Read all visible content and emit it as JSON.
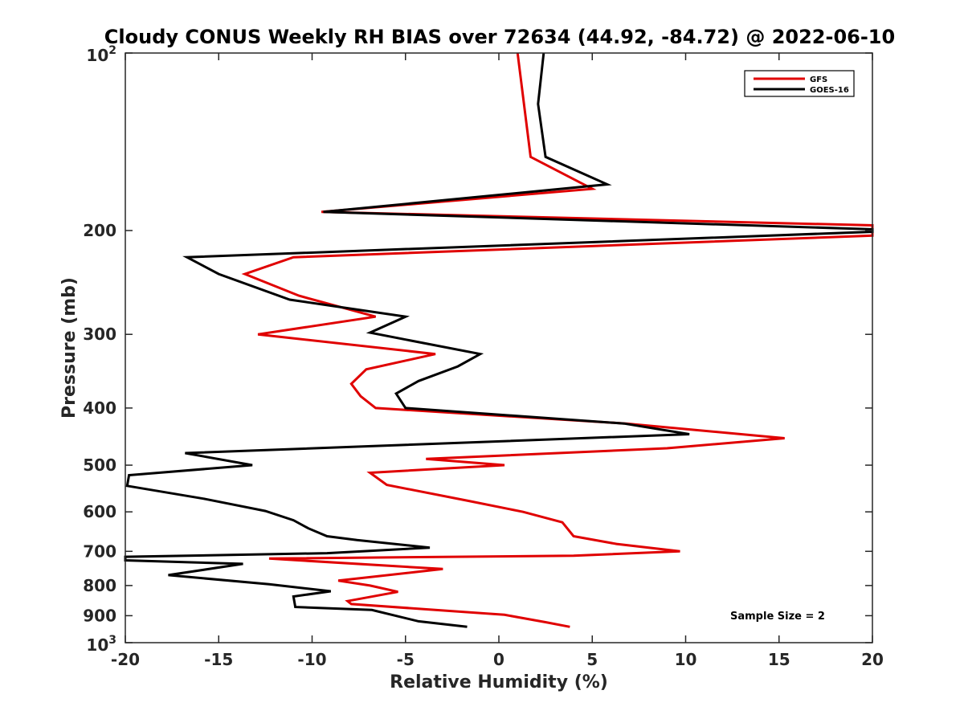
{
  "chart_data": {
    "type": "line",
    "title": "Cloudy CONUS Weekly RH BIAS over 72634 (44.92, -84.72) @ 2022-06-10",
    "xlabel": "Relative Humidity (%)",
    "ylabel": "Pressure (mb)",
    "xlim": [
      -20,
      20
    ],
    "ylim": [
      100,
      1000
    ],
    "y_scale": "log",
    "y_reversed": true,
    "grid": false,
    "legend_position": "top-right",
    "x_ticks": [
      {
        "value": -20,
        "label": "-20"
      },
      {
        "value": -15,
        "label": "-15"
      },
      {
        "value": -10,
        "label": "-10"
      },
      {
        "value": -5,
        "label": "-5"
      },
      {
        "value": 0,
        "label": "0"
      },
      {
        "value": 5,
        "label": "5"
      },
      {
        "value": 10,
        "label": "10"
      },
      {
        "value": 15,
        "label": "15"
      },
      {
        "value": 20,
        "label": "20"
      }
    ],
    "y_ticks": [
      {
        "value": 100,
        "label": "10",
        "sup": "2"
      },
      {
        "value": 200,
        "label": "200",
        "sup": ""
      },
      {
        "value": 300,
        "label": "300",
        "sup": ""
      },
      {
        "value": 400,
        "label": "400",
        "sup": ""
      },
      {
        "value": 500,
        "label": "500",
        "sup": ""
      },
      {
        "value": 600,
        "label": "600",
        "sup": ""
      },
      {
        "value": 700,
        "label": "700",
        "sup": ""
      },
      {
        "value": 800,
        "label": "800",
        "sup": ""
      },
      {
        "value": 900,
        "label": "900",
        "sup": ""
      },
      {
        "value": 1000,
        "label": "10",
        "sup": "3"
      }
    ],
    "series": [
      {
        "name": "GFS",
        "color": "#e00000",
        "points": [
          {
            "x": 1.0,
            "p": 100
          },
          {
            "x": 1.7,
            "p": 150
          },
          {
            "x": 5.0,
            "p": 170
          },
          {
            "x": -9.5,
            "p": 186
          },
          {
            "x": 20.0,
            "p": 196
          },
          {
            "x": 20.0,
            "p": 204
          },
          {
            "x": -11.0,
            "p": 222
          },
          {
            "x": -13.6,
            "p": 237
          },
          {
            "x": -10.7,
            "p": 258
          },
          {
            "x": -6.6,
            "p": 280
          },
          {
            "x": -12.9,
            "p": 300
          },
          {
            "x": -3.4,
            "p": 324
          },
          {
            "x": -7.1,
            "p": 344
          },
          {
            "x": -7.9,
            "p": 364
          },
          {
            "x": -7.4,
            "p": 382
          },
          {
            "x": -6.6,
            "p": 400
          },
          {
            "x": 6.8,
            "p": 425
          },
          {
            "x": 15.3,
            "p": 450
          },
          {
            "x": 9.0,
            "p": 468
          },
          {
            "x": -3.9,
            "p": 488
          },
          {
            "x": 0.3,
            "p": 500
          },
          {
            "x": -6.9,
            "p": 515
          },
          {
            "x": -6.0,
            "p": 540
          },
          {
            "x": -1.6,
            "p": 575
          },
          {
            "x": 1.3,
            "p": 600
          },
          {
            "x": 3.4,
            "p": 625
          },
          {
            "x": 4.0,
            "p": 660
          },
          {
            "x": 6.3,
            "p": 680
          },
          {
            "x": 9.7,
            "p": 700
          },
          {
            "x": 4.0,
            "p": 712
          },
          {
            "x": -12.3,
            "p": 720
          },
          {
            "x": -3.0,
            "p": 750
          },
          {
            "x": -8.6,
            "p": 785
          },
          {
            "x": -6.9,
            "p": 800
          },
          {
            "x": -5.4,
            "p": 820
          },
          {
            "x": -8.1,
            "p": 850
          },
          {
            "x": -7.9,
            "p": 860
          },
          {
            "x": 0.3,
            "p": 897
          },
          {
            "x": 2.5,
            "p": 923
          },
          {
            "x": 3.8,
            "p": 940
          }
        ]
      },
      {
        "name": "GOES-16",
        "color": "#000000",
        "points": [
          {
            "x": 2.4,
            "p": 100
          },
          {
            "x": 2.1,
            "p": 122
          },
          {
            "x": 2.5,
            "p": 150
          },
          {
            "x": 5.8,
            "p": 167
          },
          {
            "x": -9.4,
            "p": 186
          },
          {
            "x": 20.0,
            "p": 199
          },
          {
            "x": 20.0,
            "p": 201
          },
          {
            "x": -16.7,
            "p": 222
          },
          {
            "x": -15.0,
            "p": 237
          },
          {
            "x": -11.2,
            "p": 262
          },
          {
            "x": -5.0,
            "p": 280
          },
          {
            "x": -6.9,
            "p": 298
          },
          {
            "x": -1.0,
            "p": 324
          },
          {
            "x": -2.2,
            "p": 340
          },
          {
            "x": -4.3,
            "p": 360
          },
          {
            "x": -5.5,
            "p": 378
          },
          {
            "x": -5.0,
            "p": 400
          },
          {
            "x": 6.7,
            "p": 425
          },
          {
            "x": 10.2,
            "p": 443
          },
          {
            "x": -16.8,
            "p": 477
          },
          {
            "x": -13.2,
            "p": 500
          },
          {
            "x": -19.8,
            "p": 520
          },
          {
            "x": -19.9,
            "p": 542
          },
          {
            "x": -15.8,
            "p": 570
          },
          {
            "x": -12.5,
            "p": 598
          },
          {
            "x": -11.0,
            "p": 620
          },
          {
            "x": -10.2,
            "p": 640
          },
          {
            "x": -9.2,
            "p": 660
          },
          {
            "x": -7.6,
            "p": 670
          },
          {
            "x": -3.7,
            "p": 690
          },
          {
            "x": -9.2,
            "p": 705
          },
          {
            "x": -20.0,
            "p": 715
          },
          {
            "x": -20.0,
            "p": 725
          },
          {
            "x": -13.7,
            "p": 735
          },
          {
            "x": -17.7,
            "p": 768
          },
          {
            "x": -12.3,
            "p": 796
          },
          {
            "x": -9.0,
            "p": 818
          },
          {
            "x": -11.0,
            "p": 835
          },
          {
            "x": -10.9,
            "p": 870
          },
          {
            "x": -6.8,
            "p": 880
          },
          {
            "x": -4.3,
            "p": 920
          },
          {
            "x": -1.7,
            "p": 940
          }
        ]
      }
    ],
    "legend": [
      {
        "label": "GFS",
        "color": "#e00000"
      },
      {
        "label": "GOES-16",
        "color": "#000000"
      }
    ],
    "annotation": "Sample Size = 2"
  }
}
